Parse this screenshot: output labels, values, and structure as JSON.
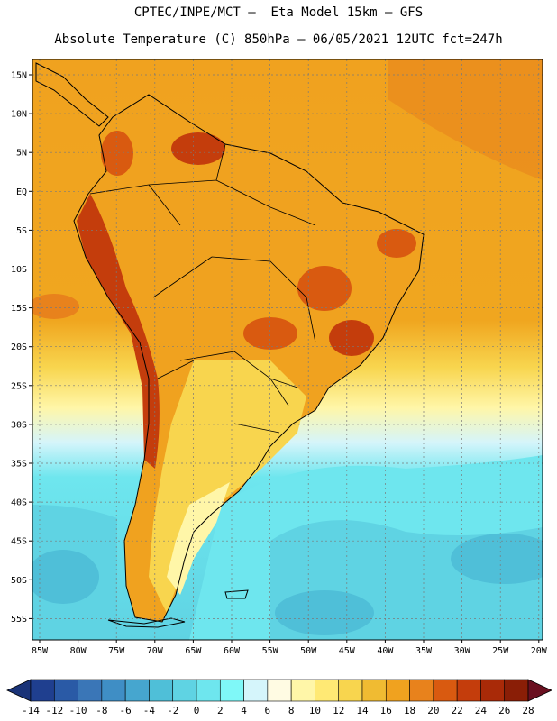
{
  "header": {
    "line1": "CPTEC/INPE/MCT –  Eta Model 15km – GFS",
    "line2": "Absolute Temperature (C) 850hPa – 06/05/2021 12UTC fct=247h"
  },
  "map": {
    "lat_labels": [
      "15N",
      "10N",
      "5N",
      "EQ",
      "5S",
      "10S",
      "15S",
      "20S",
      "25S",
      "30S",
      "35S",
      "40S",
      "45S",
      "50S",
      "55S"
    ],
    "lon_labels": [
      "85W",
      "80W",
      "75W",
      "70W",
      "65W",
      "60W",
      "55W",
      "50W",
      "45W",
      "40W",
      "35W",
      "30W",
      "25W",
      "20W"
    ]
  },
  "colorbar": {
    "labels": [
      "-14",
      "-12",
      "-10",
      "-8",
      "-6",
      "-4",
      "-2",
      "0",
      "2",
      "4",
      "6",
      "8",
      "10",
      "12",
      "14",
      "16",
      "18",
      "20",
      "22",
      "24",
      "26",
      "28"
    ],
    "colors": [
      "#1f3f8f",
      "#2a5aa6",
      "#3a76b7",
      "#3f8ec5",
      "#46a6cf",
      "#4fbfd8",
      "#5fd3e3",
      "#6ee6ee",
      "#7ff8f8",
      "#d5f5fb",
      "#fffbe3",
      "#fff6a8",
      "#ffe974",
      "#f8d54e",
      "#f0bb32",
      "#f0a21f",
      "#e8821c",
      "#d95a10",
      "#c43d0c",
      "#a92a08",
      "#8a1e06"
    ],
    "under_color": "#1a3378",
    "over_color": "#6a1020"
  }
}
